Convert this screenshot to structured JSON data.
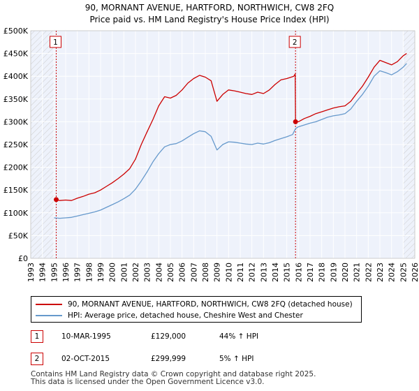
{
  "chart_data": {
    "type": "line",
    "title": "90, MORNANT AVENUE, HARTFORD, NORTHWICH, CW8 2FQ",
    "subtitle": "Price paid vs. HM Land Registry's House Price Index (HPI)",
    "x_range": [
      1993,
      2026
    ],
    "ylim": [
      0,
      500000
    ],
    "y_ticks": [
      {
        "value": 0,
        "label": "£0"
      },
      {
        "value": 50000,
        "label": "£50K"
      },
      {
        "value": 100000,
        "label": "£100K"
      },
      {
        "value": 150000,
        "label": "£150K"
      },
      {
        "value": 200000,
        "label": "£200K"
      },
      {
        "value": 250000,
        "label": "£250K"
      },
      {
        "value": 300000,
        "label": "£300K"
      },
      {
        "value": 350000,
        "label": "£350K"
      },
      {
        "value": 400000,
        "label": "£400K"
      },
      {
        "value": 450000,
        "label": "£450K"
      },
      {
        "value": 500000,
        "label": "£500K"
      }
    ],
    "x_ticks": [
      "1993",
      "1994",
      "1995",
      "1996",
      "1997",
      "1998",
      "1999",
      "2000",
      "2001",
      "2002",
      "2003",
      "2004",
      "2005",
      "2006",
      "2007",
      "2008",
      "2009",
      "2010",
      "2011",
      "2012",
      "2013",
      "2014",
      "2015",
      "2016",
      "2017",
      "2018",
      "2019",
      "2020",
      "2021",
      "2022",
      "2023",
      "2024",
      "2025",
      "2026"
    ],
    "hatch_before": 1995.0,
    "hatch_after": 2025.0,
    "series": [
      {
        "name": "90, MORNANT AVENUE, HARTFORD, NORTHWICH, CW8 2FQ (detached house)",
        "color": "#cc0000",
        "points": [
          [
            1995.19,
            129000
          ],
          [
            1995.5,
            127000
          ],
          [
            1996.0,
            128000
          ],
          [
            1996.5,
            127000
          ],
          [
            1997.0,
            132000
          ],
          [
            1997.5,
            136000
          ],
          [
            1998.0,
            141000
          ],
          [
            1998.5,
            144000
          ],
          [
            1999.0,
            150000
          ],
          [
            1999.5,
            158000
          ],
          [
            2000.0,
            166000
          ],
          [
            2000.5,
            175000
          ],
          [
            2001.0,
            185000
          ],
          [
            2001.5,
            197000
          ],
          [
            2002.0,
            218000
          ],
          [
            2002.5,
            250000
          ],
          [
            2003.0,
            278000
          ],
          [
            2003.5,
            305000
          ],
          [
            2004.0,
            335000
          ],
          [
            2004.5,
            355000
          ],
          [
            2005.0,
            352000
          ],
          [
            2005.5,
            358000
          ],
          [
            2006.0,
            370000
          ],
          [
            2006.5,
            385000
          ],
          [
            2007.0,
            395000
          ],
          [
            2007.5,
            402000
          ],
          [
            2008.0,
            398000
          ],
          [
            2008.5,
            390000
          ],
          [
            2009.0,
            345000
          ],
          [
            2009.5,
            360000
          ],
          [
            2010.0,
            370000
          ],
          [
            2010.5,
            368000
          ],
          [
            2011.0,
            365000
          ],
          [
            2011.5,
            362000
          ],
          [
            2012.0,
            360000
          ],
          [
            2012.5,
            365000
          ],
          [
            2013.0,
            362000
          ],
          [
            2013.5,
            370000
          ],
          [
            2014.0,
            382000
          ],
          [
            2014.5,
            392000
          ],
          [
            2015.0,
            395000
          ],
          [
            2015.6,
            400000
          ],
          [
            2015.72,
            405000
          ],
          [
            2015.75,
            299999
          ],
          [
            2016.0,
            300000
          ],
          [
            2016.5,
            307000
          ],
          [
            2017.0,
            312000
          ],
          [
            2017.5,
            318000
          ],
          [
            2018.0,
            322000
          ],
          [
            2018.5,
            326000
          ],
          [
            2019.0,
            330000
          ],
          [
            2019.5,
            333000
          ],
          [
            2020.0,
            335000
          ],
          [
            2020.5,
            345000
          ],
          [
            2021.0,
            362000
          ],
          [
            2021.5,
            378000
          ],
          [
            2022.0,
            398000
          ],
          [
            2022.5,
            420000
          ],
          [
            2023.0,
            435000
          ],
          [
            2023.5,
            430000
          ],
          [
            2024.0,
            425000
          ],
          [
            2024.5,
            432000
          ],
          [
            2025.0,
            445000
          ],
          [
            2025.3,
            450000
          ]
        ]
      },
      {
        "name": "HPI: Average price, detached house, Cheshire West and Chester",
        "color": "#6699cc",
        "points": [
          [
            1995.0,
            89000
          ],
          [
            1995.5,
            88000
          ],
          [
            1996.0,
            89000
          ],
          [
            1996.5,
            90000
          ],
          [
            1997.0,
            93000
          ],
          [
            1997.5,
            96000
          ],
          [
            1998.0,
            99000
          ],
          [
            1998.5,
            102000
          ],
          [
            1999.0,
            106000
          ],
          [
            1999.5,
            112000
          ],
          [
            2000.0,
            118000
          ],
          [
            2000.5,
            124000
          ],
          [
            2001.0,
            131000
          ],
          [
            2001.5,
            139000
          ],
          [
            2002.0,
            152000
          ],
          [
            2002.5,
            170000
          ],
          [
            2003.0,
            190000
          ],
          [
            2003.5,
            212000
          ],
          [
            2004.0,
            230000
          ],
          [
            2004.5,
            245000
          ],
          [
            2005.0,
            250000
          ],
          [
            2005.5,
            252000
          ],
          [
            2006.0,
            258000
          ],
          [
            2006.5,
            266000
          ],
          [
            2007.0,
            274000
          ],
          [
            2007.5,
            280000
          ],
          [
            2008.0,
            278000
          ],
          [
            2008.5,
            268000
          ],
          [
            2009.0,
            238000
          ],
          [
            2009.5,
            250000
          ],
          [
            2010.0,
            256000
          ],
          [
            2010.5,
            255000
          ],
          [
            2011.0,
            253000
          ],
          [
            2011.5,
            251000
          ],
          [
            2012.0,
            250000
          ],
          [
            2012.5,
            253000
          ],
          [
            2013.0,
            251000
          ],
          [
            2013.5,
            254000
          ],
          [
            2014.0,
            259000
          ],
          [
            2014.5,
            263000
          ],
          [
            2015.0,
            267000
          ],
          [
            2015.5,
            272000
          ],
          [
            2015.75,
            285000
          ],
          [
            2016.0,
            289000
          ],
          [
            2016.5,
            293000
          ],
          [
            2017.0,
            297000
          ],
          [
            2017.5,
            300000
          ],
          [
            2018.0,
            305000
          ],
          [
            2018.5,
            310000
          ],
          [
            2019.0,
            313000
          ],
          [
            2019.5,
            315000
          ],
          [
            2020.0,
            318000
          ],
          [
            2020.5,
            328000
          ],
          [
            2021.0,
            345000
          ],
          [
            2021.5,
            360000
          ],
          [
            2022.0,
            378000
          ],
          [
            2022.5,
            400000
          ],
          [
            2023.0,
            412000
          ],
          [
            2023.5,
            408000
          ],
          [
            2024.0,
            403000
          ],
          [
            2024.5,
            410000
          ],
          [
            2025.0,
            420000
          ],
          [
            2025.3,
            428000
          ]
        ]
      }
    ],
    "sales": [
      {
        "label": "1",
        "year": 1995.19,
        "price": 129000
      },
      {
        "label": "2",
        "year": 2015.75,
        "price": 299999
      }
    ]
  },
  "legend": {
    "series1": "90, MORNANT AVENUE, HARTFORD, NORTHWICH, CW8 2FQ (detached house)",
    "series2": "HPI: Average price, detached house, Cheshire West and Chester",
    "series1_color": "#cc0000",
    "series2_color": "#6699cc"
  },
  "sales_table": [
    {
      "label": "1",
      "date": "10-MAR-1995",
      "price": "£129,000",
      "hpi": "44% ↑ HPI"
    },
    {
      "label": "2",
      "date": "02-OCT-2015",
      "price": "£299,999",
      "hpi": "5% ↑ HPI"
    }
  ],
  "footer": {
    "line1": "Contains HM Land Registry data © Crown copyright and database right 2025.",
    "line2": "This data is licensed under the Open Government Licence v3.0."
  }
}
